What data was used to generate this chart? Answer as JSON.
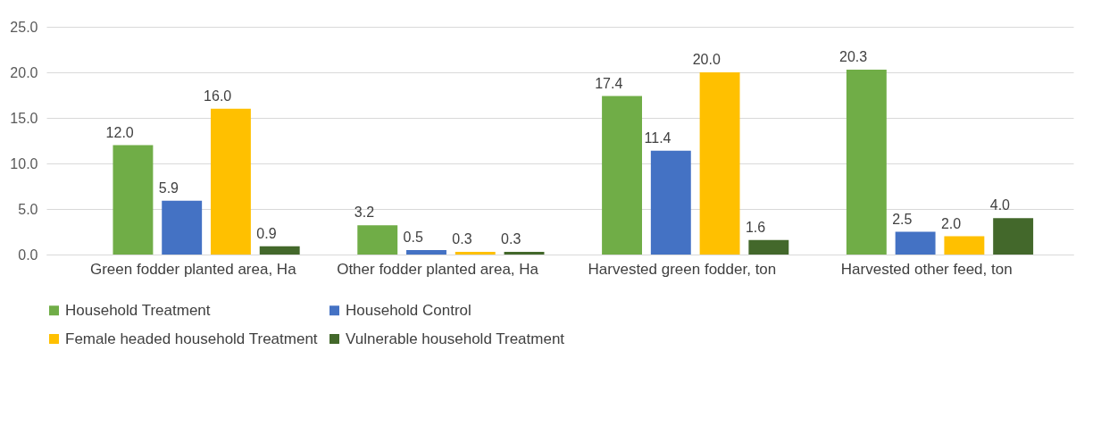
{
  "chart_data": {
    "type": "bar",
    "categories": [
      "Green fodder planted area, Ha",
      "Other fodder  planted area, Ha",
      "Harvested green fodder, ton",
      "Harvested other feed, ton"
    ],
    "series": [
      {
        "name": "Household Treatment",
        "color": "#70ad47",
        "values": [
          12.0,
          3.2,
          17.4,
          20.3
        ],
        "value_labels": [
          "12.0",
          "3.2",
          "17.4",
          "20.3"
        ]
      },
      {
        "name": "Household Control",
        "color": "#4472c4",
        "values": [
          5.9,
          0.5,
          11.4,
          2.5
        ],
        "value_labels": [
          "5.9",
          "0.5",
          "11.4",
          "2.5"
        ]
      },
      {
        "name": "Female headed household Treatment",
        "color": "#ffc000",
        "values": [
          16.0,
          0.3,
          20.0,
          2.0
        ],
        "value_labels": [
          "16.0",
          "0.3",
          "20.0",
          "2.0"
        ]
      },
      {
        "name": "Vulnerable household Treatment",
        "color": "#43682b",
        "values": [
          0.9,
          0.3,
          1.6,
          4.0
        ],
        "value_labels": [
          "0.9",
          "0.3",
          "1.6",
          "4.0"
        ]
      }
    ],
    "ylim": [
      0,
      25
    ],
    "yticks": [
      {
        "value": 0,
        "label": "0.0"
      },
      {
        "value": 5,
        "label": "5.0"
      },
      {
        "value": 10,
        "label": "10.0"
      },
      {
        "value": 15,
        "label": "15.0"
      },
      {
        "value": 20,
        "label": "20.0"
      },
      {
        "value": 25,
        "label": "25.0"
      }
    ],
    "grid": "y",
    "legend": "bottom"
  }
}
